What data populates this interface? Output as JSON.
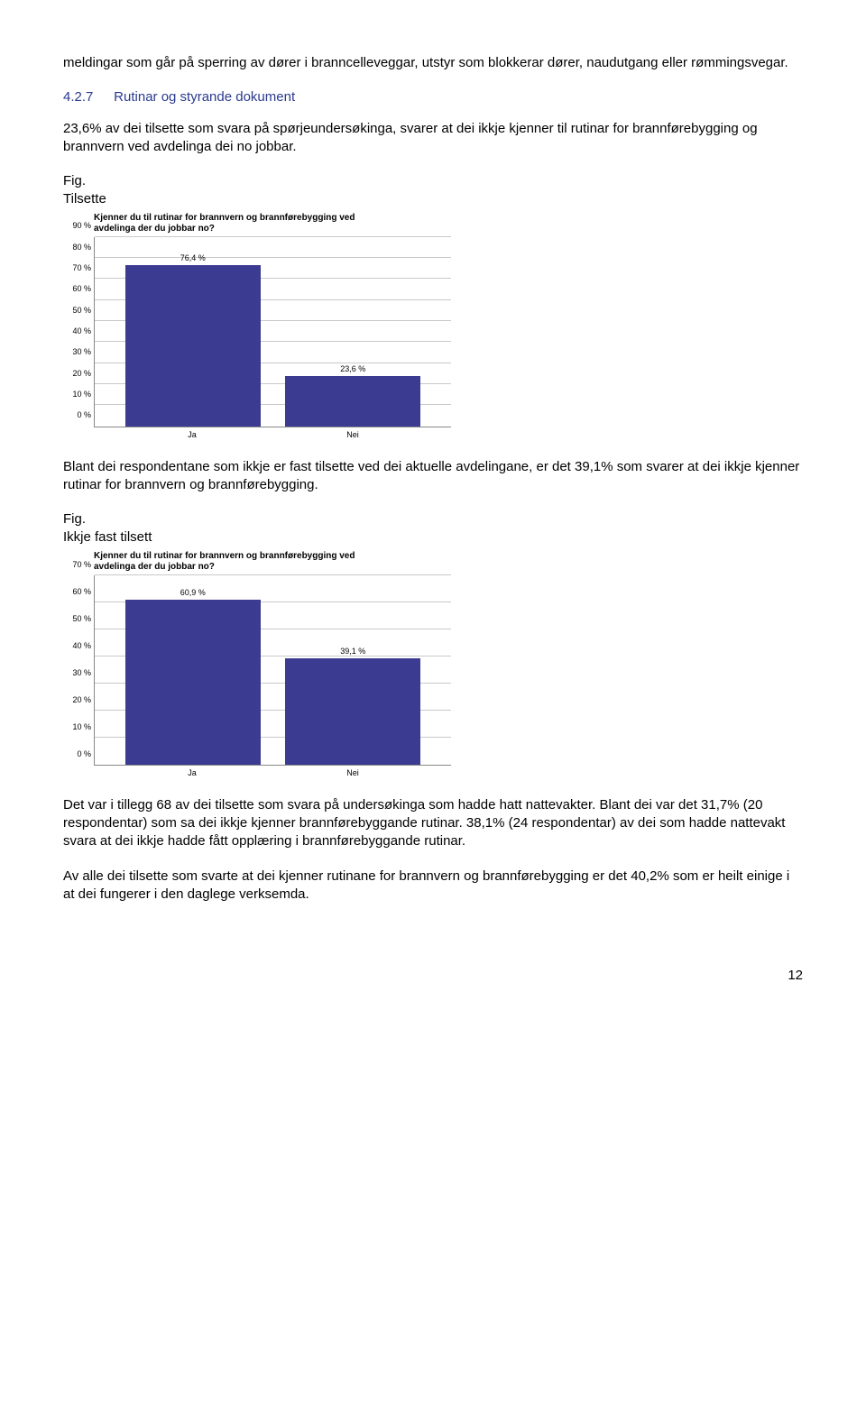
{
  "intro_para": "meldingar som går på sperring av dører i branncelleveggar, utstyr som blokkerar dører, naudutgang eller rømmingsvegar.",
  "section": {
    "num": "4.2.7",
    "title": "Rutinar og styrande dokument"
  },
  "para1": "23,6% av dei tilsette som svara på spørjeundersøkinga, svarer at dei ikkje kjenner til rutinar for brannførebygging og brannvern ved avdelinga dei no jobbar.",
  "fig1_label": "Fig.",
  "fig1_sub": "Tilsette",
  "chart1": {
    "title_l1": "Kjenner du til rutinar for brannvern og brannførebygging ved",
    "title_l2": "avdelinga der du jobbar no?",
    "ymax": 90,
    "ytick_step": 10,
    "ytick_suffix": " %",
    "bar_color": "#3b3b91",
    "grid_color": "#c9c9c9",
    "categories": [
      "Ja",
      "Nei"
    ],
    "values": [
      76.4,
      23.6
    ],
    "value_labels": [
      "76,4 %",
      "23,6 %"
    ]
  },
  "para2": "Blant dei respondentane som ikkje er fast tilsette ved dei aktuelle avdelingane, er det 39,1% som svarer at dei ikkje kjenner rutinar for brannvern og brannførebygging.",
  "fig2_label": "Fig.",
  "fig2_sub": "Ikkje fast tilsett",
  "chart2": {
    "title_l1": "Kjenner du til rutinar for brannvern og brannførebygging ved",
    "title_l2": "avdelinga der du jobbar no?",
    "ymax": 70,
    "ytick_step": 10,
    "ytick_suffix": " %",
    "bar_color": "#3b3b91",
    "grid_color": "#c9c9c9",
    "categories": [
      "Ja",
      "Nei"
    ],
    "values": [
      60.9,
      39.1
    ],
    "value_labels": [
      "60,9 %",
      "39,1 %"
    ]
  },
  "para3": "Det var i tillegg 68 av dei tilsette som svara på undersøkinga som hadde hatt nattevakter. Blant dei var det 31,7% (20 respondentar) som sa dei ikkje kjenner brannførebyggande rutinar. 38,1% (24 respondentar) av dei som hadde nattevakt svara at dei ikkje hadde fått opplæring i brannførebyggande rutinar.",
  "para4": "Av alle dei tilsette som svarte at dei kjenner rutinane for brannvern og brannførebygging er det 40,2% som er heilt einige i at dei fungerer i den daglege verksemda.",
  "page_number": "12"
}
